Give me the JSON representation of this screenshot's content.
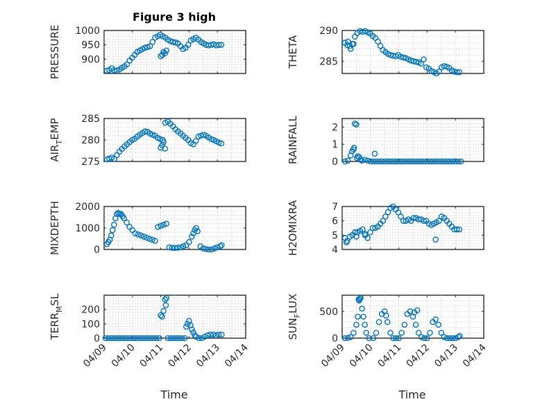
{
  "figure": {
    "title": "Figure 3 high",
    "marker_color": "#0072bd",
    "x_label": "Time",
    "x_tick_labels": [
      "04/09",
      "04/10",
      "04/11",
      "04/12",
      "04/13",
      "04/14"
    ]
  },
  "chart_data": [
    {
      "type": "scatter",
      "ylabel": "PRESSURE",
      "ylim": [
        850,
        1000
      ],
      "yticks": [
        900,
        950,
        1000
      ],
      "grid": true,
      "x": [
        0.1,
        0.18,
        0.27,
        0.36,
        0.45,
        0.54,
        0.63,
        0.72,
        0.81,
        0.9,
        0.99,
        1.08,
        1.17,
        1.26,
        1.35,
        1.44,
        1.53,
        1.62,
        1.71,
        1.8,
        1.89,
        1.98,
        2.07,
        2.16,
        2.25,
        2.34,
        2.43,
        2.52,
        2.61,
        2.7,
        2.79,
        2.88,
        2.97,
        3.06,
        3.15,
        3.24,
        3.33,
        3.42,
        3.51,
        3.6,
        3.69,
        3.78,
        3.87,
        3.96,
        4.05,
        4.14,
        2.0,
        2.05,
        2.1,
        2.2,
        2.15
      ],
      "y": [
        860,
        862,
        868,
        861,
        860,
        864,
        870,
        875,
        882,
        895,
        905,
        915,
        925,
        930,
        935,
        940,
        942,
        945,
        960,
        975,
        980,
        985,
        980,
        975,
        968,
        963,
        960,
        958,
        955,
        945,
        935,
        940,
        950,
        965,
        970,
        975,
        968,
        960,
        955,
        950,
        948,
        950,
        952,
        948,
        950,
        950,
        910,
        915,
        925,
        930,
        920
      ]
    },
    {
      "type": "scatter",
      "ylabel": "THETA",
      "ylim": [
        283,
        290
      ],
      "yticks": [
        285,
        290
      ],
      "grid": true,
      "x": [
        0.1,
        0.18,
        0.27,
        0.36,
        0.45,
        0.54,
        0.63,
        0.72,
        0.81,
        0.9,
        0.99,
        1.08,
        1.17,
        1.26,
        1.35,
        1.44,
        1.53,
        1.62,
        1.71,
        1.8,
        1.89,
        1.98,
        2.07,
        2.16,
        2.25,
        2.34,
        2.43,
        2.52,
        2.61,
        2.7,
        2.79,
        2.88,
        2.97,
        3.06,
        3.15,
        3.24,
        3.33,
        3.42,
        3.51,
        3.6,
        3.69,
        3.78,
        3.87,
        3.96,
        4.05,
        4.14,
        0.2,
        0.3,
        0.4
      ],
      "y": [
        288.0,
        287.6,
        287.5,
        287.8,
        289.0,
        289.6,
        289.9,
        289.8,
        289.9,
        289.7,
        289.5,
        289.1,
        288.8,
        288.2,
        287.5,
        286.8,
        286.5,
        286.2,
        286.0,
        285.9,
        285.8,
        286.0,
        285.7,
        285.6,
        285.5,
        285.3,
        285.1,
        285.0,
        284.9,
        284.8,
        284.6,
        285.3,
        284.0,
        283.8,
        283.4,
        283.2,
        283.0,
        283.3,
        284.0,
        284.2,
        284.1,
        283.9,
        283.5,
        283.3,
        283.2,
        283.2,
        288.2,
        287.0,
        287.8
      ]
    },
    {
      "type": "scatter",
      "ylabel": "AIR_TEMP",
      "ylim": [
        275,
        285
      ],
      "yticks": [
        275,
        280,
        285
      ],
      "grid": true,
      "x": [
        0.1,
        0.18,
        0.27,
        0.36,
        0.45,
        0.54,
        0.63,
        0.72,
        0.81,
        0.9,
        0.99,
        1.08,
        1.17,
        1.26,
        1.35,
        1.44,
        1.53,
        1.62,
        1.71,
        1.8,
        1.89,
        1.98,
        2.07,
        2.16,
        2.25,
        2.34,
        2.43,
        2.52,
        2.61,
        2.7,
        2.79,
        2.88,
        2.97,
        3.06,
        3.15,
        3.24,
        3.33,
        3.42,
        3.51,
        3.6,
        3.69,
        3.78,
        3.87,
        3.96,
        4.05,
        4.14,
        2.0,
        2.05,
        2.1,
        2.15
      ],
      "y": [
        275.5,
        275.7,
        275.9,
        275.6,
        276.5,
        277.3,
        277.9,
        278.5,
        279.0,
        279.5,
        280.0,
        280.3,
        280.8,
        281.2,
        281.6,
        282.0,
        281.9,
        281.5,
        281.2,
        281.0,
        280.5,
        280.2,
        280.0,
        284.0,
        284.3,
        283.8,
        283.2,
        282.5,
        282.0,
        281.5,
        281.0,
        280.5,
        280.0,
        279.3,
        279.0,
        279.8,
        280.8,
        281.0,
        281.2,
        281.0,
        280.6,
        280.2,
        280.0,
        279.7,
        279.4,
        279.2,
        278.2,
        278.8,
        279.5,
        278.0
      ]
    },
    {
      "type": "scatter",
      "ylabel": "RAINFALL",
      "ylim": [
        0,
        2.5
      ],
      "yticks": [
        0,
        1,
        2
      ],
      "grid": true,
      "x": [
        0.1,
        0.2,
        0.3,
        0.35,
        0.4,
        0.45,
        0.5,
        0.55,
        0.6,
        0.65,
        0.7,
        0.8,
        0.9,
        1.0,
        1.1,
        1.15,
        1.2,
        1.3,
        1.4,
        1.5,
        1.6,
        1.7,
        1.8,
        1.9,
        2.0,
        2.1,
        2.2,
        2.3,
        2.4,
        2.5,
        2.6,
        2.7,
        2.8,
        2.9,
        3.0,
        3.1,
        3.2,
        3.3,
        3.4,
        3.5,
        3.6,
        3.7,
        3.8,
        3.9,
        4.0,
        4.1,
        4.2,
        0.42,
        0.52
      ],
      "y": [
        0,
        0.05,
        0.35,
        0.6,
        0.7,
        2.2,
        2.15,
        0.3,
        0.25,
        0.1,
        0.05,
        0.1,
        0.05,
        0,
        0,
        0.45,
        0,
        0,
        0,
        0,
        0,
        0,
        0,
        0,
        0,
        0,
        0,
        0,
        0,
        0,
        0,
        0,
        0,
        0,
        0,
        0,
        0,
        0,
        0,
        0,
        0,
        0,
        0,
        0,
        0,
        0,
        0,
        0.8,
        0.2
      ]
    },
    {
      "type": "scatter",
      "ylabel": "MIXDEPTH",
      "ylim": [
        0,
        2000
      ],
      "yticks": [
        0,
        1000,
        2000
      ],
      "grid": true,
      "x": [
        0.1,
        0.15,
        0.2,
        0.25,
        0.3,
        0.35,
        0.4,
        0.45,
        0.5,
        0.55,
        0.6,
        0.65,
        0.7,
        0.8,
        0.9,
        1.0,
        1.1,
        1.2,
        1.3,
        1.4,
        1.5,
        1.6,
        1.7,
        1.8,
        1.9,
        2.0,
        2.1,
        2.2,
        2.3,
        2.4,
        2.5,
        2.6,
        2.7,
        2.8,
        2.9,
        3.0,
        3.1,
        3.15,
        3.2,
        3.25,
        3.3,
        3.4,
        3.5,
        3.6,
        3.7,
        3.8,
        3.9,
        4.0,
        4.1,
        4.15
      ],
      "y": [
        250,
        350,
        450,
        650,
        900,
        1150,
        1450,
        1650,
        1700,
        1650,
        1650,
        1550,
        1450,
        1250,
        1050,
        900,
        750,
        700,
        650,
        600,
        550,
        500,
        450,
        400,
        1050,
        1100,
        1150,
        1200,
        100,
        80,
        70,
        80,
        100,
        150,
        200,
        350,
        600,
        750,
        900,
        1000,
        850,
        150,
        50,
        20,
        0,
        0,
        50,
        100,
        150,
        200
      ]
    },
    {
      "type": "scatter",
      "ylabel": "H2OMIXRA",
      "ylim": [
        4,
        7
      ],
      "yticks": [
        4,
        5,
        6,
        7
      ],
      "grid": true,
      "x": [
        0.1,
        0.18,
        0.27,
        0.36,
        0.45,
        0.54,
        0.63,
        0.72,
        0.81,
        0.9,
        0.99,
        1.08,
        1.17,
        1.26,
        1.35,
        1.44,
        1.53,
        1.62,
        1.71,
        1.8,
        1.89,
        1.98,
        2.07,
        2.16,
        2.25,
        2.34,
        2.43,
        2.52,
        2.61,
        2.7,
        2.79,
        2.88,
        2.97,
        3.06,
        3.15,
        3.24,
        3.33,
        3.42,
        3.51,
        3.6,
        3.69,
        3.78,
        3.87,
        3.96,
        4.05,
        4.14,
        0.15,
        0.5,
        0.8,
        3.3
      ],
      "y": [
        4.8,
        4.6,
        4.9,
        5.0,
        5.2,
        5.2,
        5.3,
        5.4,
        5.0,
        4.8,
        5.2,
        5.5,
        5.5,
        5.6,
        5.8,
        6.0,
        6.3,
        6.6,
        6.9,
        7.0,
        6.8,
        6.6,
        6.3,
        6.0,
        6.0,
        6.1,
        6.0,
        6.2,
        6.2,
        6.1,
        6.1,
        6.0,
        6.0,
        5.8,
        5.7,
        5.8,
        5.9,
        6.0,
        6.3,
        6.2,
        6.0,
        5.8,
        5.6,
        5.4,
        5.4,
        5.4,
        4.5,
        4.9,
        5.1,
        4.7
      ]
    },
    {
      "type": "scatter",
      "ylabel": "TERR_MSL",
      "ylim": [
        0,
        300
      ],
      "yticks": [
        0,
        100,
        200
      ],
      "grid": true,
      "x": [
        0.05,
        0.15,
        0.25,
        0.35,
        0.45,
        0.55,
        0.65,
        0.75,
        0.85,
        0.95,
        1.05,
        1.15,
        1.25,
        1.35,
        1.45,
        1.55,
        1.65,
        1.75,
        1.85,
        1.95,
        2.0,
        2.05,
        2.1,
        2.15,
        2.2,
        2.25,
        2.35,
        2.45,
        2.55,
        2.65,
        2.75,
        2.85,
        2.9,
        2.95,
        3.0,
        3.05,
        3.1,
        3.15,
        3.2,
        3.25,
        3.35,
        3.45,
        3.55,
        3.65,
        3.75,
        3.85,
        3.95,
        4.05,
        4.15,
        2.18
      ],
      "y": [
        0,
        0,
        0,
        0,
        0,
        0,
        0,
        0,
        0,
        0,
        0,
        0,
        0,
        0,
        0,
        0,
        0,
        0,
        0,
        0,
        160,
        150,
        190,
        270,
        280,
        0,
        0,
        0,
        0,
        0,
        0,
        0,
        80,
        100,
        120,
        90,
        60,
        40,
        20,
        10,
        0,
        0,
        10,
        20,
        25,
        25,
        20,
        25,
        25,
        230
      ]
    },
    {
      "type": "scatter",
      "ylabel": "SUN_FLUX",
      "ylim": [
        0,
        800
      ],
      "yticks": [
        0,
        500
      ],
      "grid": true,
      "x": [
        0.1,
        0.2,
        0.3,
        0.4,
        0.5,
        0.55,
        0.6,
        0.65,
        0.7,
        0.75,
        0.8,
        0.85,
        0.95,
        1.1,
        1.2,
        1.3,
        1.4,
        1.5,
        1.6,
        1.7,
        1.8,
        1.9,
        2.0,
        2.1,
        2.2,
        2.3,
        2.4,
        2.5,
        2.6,
        2.7,
        2.8,
        2.9,
        3.0,
        3.1,
        3.2,
        3.3,
        3.4,
        3.5,
        3.6,
        3.7,
        3.8,
        3.9,
        4.0,
        4.1,
        4.15,
        0.58,
        0.62,
        1.55,
        2.55,
        2.65
      ],
      "y": [
        0,
        5,
        20,
        100,
        250,
        400,
        700,
        750,
        550,
        400,
        250,
        100,
        0,
        0,
        100,
        300,
        450,
        500,
        300,
        100,
        0,
        0,
        0,
        100,
        250,
        450,
        500,
        400,
        250,
        100,
        20,
        0,
        0,
        100,
        300,
        350,
        250,
        100,
        20,
        0,
        0,
        0,
        0,
        20,
        40,
        720,
        740,
        420,
        480,
        520
      ]
    }
  ]
}
